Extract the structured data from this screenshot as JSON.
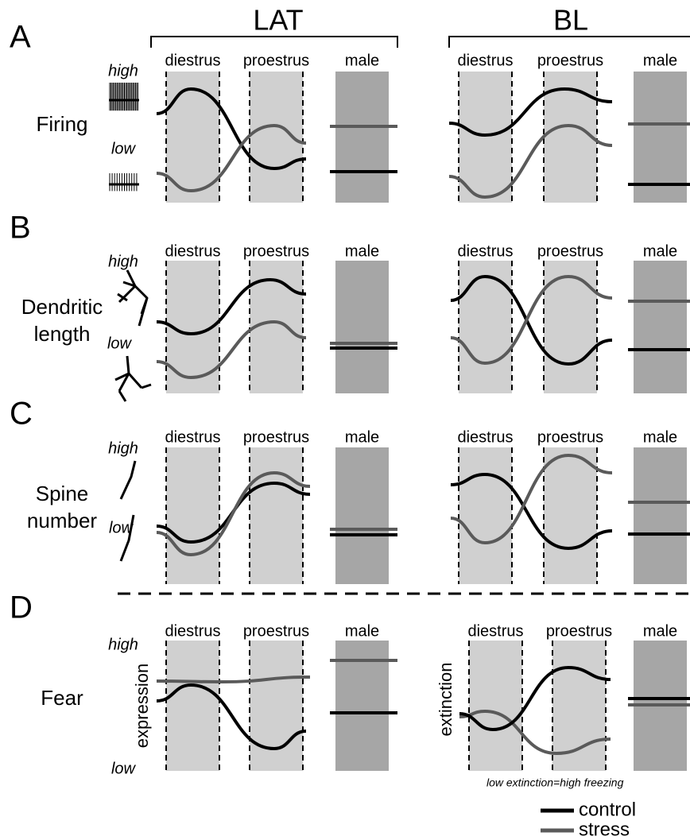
{
  "headers": [
    "LAT",
    "BL"
  ],
  "columns": [
    "diestrus",
    "proestrus",
    "male"
  ],
  "panels": [
    {
      "letter": "A",
      "label": [
        "Firing"
      ],
      "high": "high",
      "low": "low"
    },
    {
      "letter": "B",
      "label": [
        "Dendritic",
        "length"
      ],
      "high": "high",
      "low": "low"
    },
    {
      "letter": "C",
      "label": [
        "Spine",
        "number"
      ],
      "high": "high",
      "low": "low"
    },
    {
      "letter": "D",
      "label": [
        "Fear"
      ],
      "high": "high",
      "low": "low",
      "axis_left": "expression",
      "axis_right": "extinction"
    }
  ],
  "note": "low extinction=high freezing",
  "legend": [
    "control",
    "stress"
  ]
}
